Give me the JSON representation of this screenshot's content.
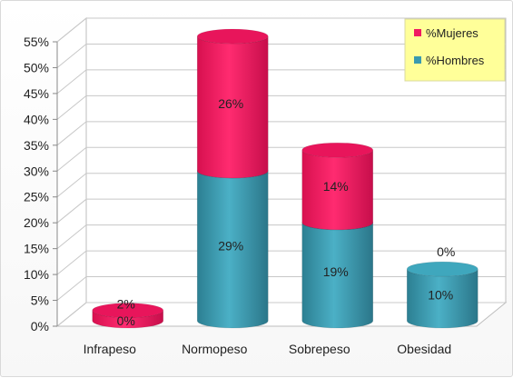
{
  "chart_data": {
    "type": "bar",
    "subtype": "stacked-3d-cylinder",
    "categories": [
      "Infrapeso",
      "Normopeso",
      "Sobrepeso",
      "Obesidad"
    ],
    "series": [
      {
        "name": "%Hombres",
        "values": [
          0,
          29,
          19,
          10
        ],
        "labels": [
          "0%",
          "29%",
          "19%",
          "10%"
        ],
        "color": "#3a9aaf"
      },
      {
        "name": "%Mujeres",
        "values": [
          2,
          26,
          14,
          0
        ],
        "labels": [
          "2%",
          "26%",
          "14%",
          "0%"
        ],
        "color": "#f01a62"
      }
    ],
    "y_ticks": [
      "0%",
      "5%",
      "10%",
      "15%",
      "20%",
      "25%",
      "30%",
      "35%",
      "40%",
      "45%",
      "50%",
      "55%"
    ],
    "ylim": [
      0,
      55
    ],
    "grid": true,
    "legend": {
      "position": "top-right",
      "order": [
        "%Mujeres",
        "%Hombres"
      ],
      "background": "#ffff99"
    },
    "colors": {
      "hombres": "#3a9aaf",
      "mujeres": "#f01a62"
    }
  }
}
